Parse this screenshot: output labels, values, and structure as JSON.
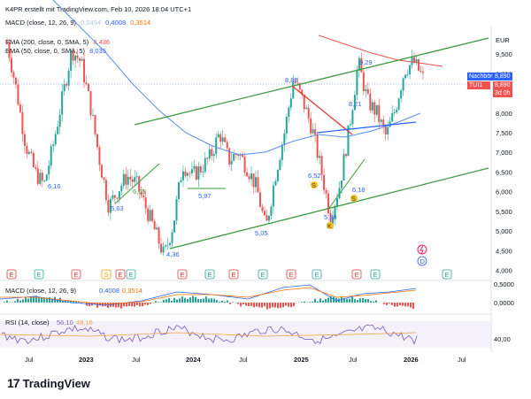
{
  "header": {
    "credit": "K4PR erstellt mit TradingView.com, Feb 10, 2026 18:04 UTC+1",
    "macd_label": "MACD (close, 12, 26, 9)",
    "macd_values": [
      "0,0494",
      "0,4008",
      "0,3514"
    ],
    "ema200_label": "EMA (200, close, 0, SMA, 5)",
    "ema200_value": "8,436",
    "ema50_label": "EMA (50, close, 0, SMA, 5)",
    "ema50_value": "8,035"
  },
  "price_panel": {
    "currency": "EUR",
    "tags": {
      "after_hours_label": "Nachbörslich",
      "after_hours_value": "8,890",
      "ticker": "TUI1",
      "ticker_value": "8,890",
      "countdown": "3d 0h"
    },
    "price_annotations": [
      "6,16",
      "5,63",
      "6,05",
      "5,97",
      "4,36",
      "5,05",
      "8,88",
      "6,52",
      "5,36",
      "6,18",
      "8,21",
      "9,29"
    ],
    "pattern_markers": [
      "S",
      "S",
      "K"
    ]
  },
  "macd_panel": {
    "label": "MACD (close, 12, 26, 9)",
    "values": [
      "0,0494",
      "0,4008",
      "0,3514"
    ],
    "yticks": [
      "0,5000",
      "0,0000"
    ]
  },
  "rsi_panel": {
    "label": "RSI (14, close)",
    "values": [
      "56,10",
      "49,16"
    ],
    "yticks": [
      "40,00"
    ]
  },
  "event_markers": [
    "E",
    "E",
    "E",
    "S",
    "E",
    "E",
    "E",
    "E",
    "E",
    "E",
    "E",
    "E",
    "E",
    "E",
    "D",
    "E"
  ],
  "branding": "TradingView",
  "colors": {
    "up": "#26a69a",
    "down": "#ef5350",
    "ema200": "#ef5350",
    "ema50": "#5b8def",
    "trend": "#3f9a3f",
    "rsi": "#7e57c2"
  },
  "chart_data": {
    "type": "candlestick",
    "x_ticks": [
      "Jul",
      "2023",
      "Jul",
      "2024",
      "Jul",
      "2025",
      "Jul",
      "2026",
      "Jul"
    ],
    "y_ticks": [
      "9,500",
      "9,000",
      "8,500",
      "8,000",
      "7,500",
      "7,000",
      "6,500",
      "6,000",
      "5,500",
      "5,000",
      "4,500",
      "4,000"
    ],
    "ylim": [
      3.9,
      10.2
    ],
    "ylabel": "EUR",
    "close_path": [
      [
        "2022-05",
        9.8
      ],
      [
        "2022-06",
        8.6
      ],
      [
        "2022-07",
        7.2
      ],
      [
        "2022-08",
        6.5
      ],
      [
        "2022-09",
        6.16
      ],
      [
        "2022-10",
        7.2
      ],
      [
        "2022-11",
        8.4
      ],
      [
        "2022-12",
        9.6
      ],
      [
        "2023-01",
        9.3
      ],
      [
        "2023-02",
        8.2
      ],
      [
        "2023-03",
        6.8
      ],
      [
        "2023-04",
        5.63
      ],
      [
        "2023-05",
        6.05
      ],
      [
        "2023-06",
        6.4
      ],
      [
        "2023-07",
        6.2
      ],
      [
        "2023-08",
        5.6
      ],
      [
        "2023-09",
        5.0
      ],
      [
        "2023-10",
        4.36
      ],
      [
        "2023-11",
        5.2
      ],
      [
        "2023-12",
        6.7
      ],
      [
        "2024-01",
        6.4
      ],
      [
        "2024-02",
        6.6
      ],
      [
        "2024-03",
        6.9
      ],
      [
        "2024-04",
        7.5
      ],
      [
        "2024-05",
        6.8
      ],
      [
        "2024-06",
        7.0
      ],
      [
        "2024-07",
        6.6
      ],
      [
        "2024-08",
        6.1
      ],
      [
        "2024-09",
        5.05
      ],
      [
        "2024-10",
        6.4
      ],
      [
        "2024-11",
        7.5
      ],
      [
        "2024-12",
        8.88
      ],
      [
        "2025-01",
        8.3
      ],
      [
        "2025-02",
        7.6
      ],
      [
        "2025-03",
        6.52
      ],
      [
        "2025-04",
        5.36
      ],
      [
        "2025-05",
        6.18
      ],
      [
        "2025-06",
        7.6
      ],
      [
        "2025-07",
        9.29
      ],
      [
        "2025-08",
        8.3
      ],
      [
        "2025-09",
        8.0
      ],
      [
        "2025-10",
        7.4
      ],
      [
        "2025-11",
        8.1
      ],
      [
        "2025-12",
        9.1
      ],
      [
        "2026-01",
        9.3
      ],
      [
        "2026-02",
        8.89
      ]
    ]
  }
}
